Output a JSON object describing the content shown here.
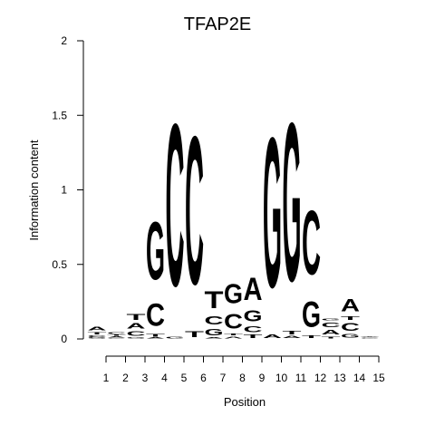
{
  "chart_data": {
    "type": "sequence-logo",
    "title": "TFAP2E",
    "xlabel": "Position",
    "ylabel": "Information content",
    "ylim": [
      0,
      2
    ],
    "yticks": [
      "0",
      "0.5",
      "1",
      "1.5",
      "2"
    ],
    "positions": [
      "1",
      "2",
      "3",
      "4",
      "5",
      "6",
      "7",
      "8",
      "9",
      "10",
      "11",
      "12",
      "13",
      "14",
      "15"
    ],
    "colors": {
      "A": "#00e000",
      "C": "#0000ee",
      "G": "#ffa500",
      "T": "#ff0000"
    },
    "columns": [
      [
        [
          "G",
          0.01
        ],
        [
          "C",
          0.015
        ],
        [
          "T",
          0.025
        ],
        [
          "A",
          0.04
        ]
      ],
      [
        [
          "G",
          0.008
        ],
        [
          "A",
          0.01
        ],
        [
          "T",
          0.012
        ],
        [
          "C",
          0.015
        ]
      ],
      [
        [
          "G",
          0.01
        ],
        [
          "C",
          0.05
        ],
        [
          "A",
          0.055
        ],
        [
          "T",
          0.065
        ]
      ],
      [
        [
          "A",
          0.01
        ],
        [
          "T",
          0.03
        ],
        [
          "C",
          0.24
        ],
        [
          "G",
          0.62
        ]
      ],
      [
        [
          "G",
          0.02
        ],
        [
          "C",
          1.74
        ]
      ],
      [
        [
          "T",
          0.06
        ],
        [
          "C",
          1.59
        ]
      ],
      [
        [
          "A",
          0.01
        ],
        [
          "G",
          0.07
        ],
        [
          "C",
          0.09
        ],
        [
          "T",
          0.18
        ]
      ],
      [
        [
          "A",
          0.02
        ],
        [
          "T",
          0.02
        ],
        [
          "C",
          0.16
        ],
        [
          "G",
          0.21
        ]
      ],
      [
        [
          "T",
          0.035
        ],
        [
          "C",
          0.06
        ],
        [
          "G",
          0.12
        ],
        [
          "A",
          0.24
        ]
      ],
      [
        [
          "A",
          0.035
        ],
        [
          "G",
          1.61
        ]
      ],
      [
        [
          "A",
          0.025
        ],
        [
          "T",
          0.035
        ],
        [
          "G",
          1.7
        ]
      ],
      [
        [
          "T",
          0.03
        ],
        [
          "G",
          0.27
        ],
        [
          "C",
          0.69
        ]
      ],
      [
        [
          "T",
          0.02
        ],
        [
          "A",
          0.05
        ],
        [
          "C",
          0.05
        ],
        [
          "G",
          0.02
        ]
      ],
      [
        [
          "G",
          0.04
        ],
        [
          "C",
          0.08
        ],
        [
          "T",
          0.04
        ],
        [
          "A",
          0.13
        ]
      ],
      [
        [
          "G",
          0.005
        ],
        [
          "C",
          0.005
        ],
        [
          "T",
          0.005
        ],
        [
          "A",
          0.005
        ]
      ]
    ]
  }
}
